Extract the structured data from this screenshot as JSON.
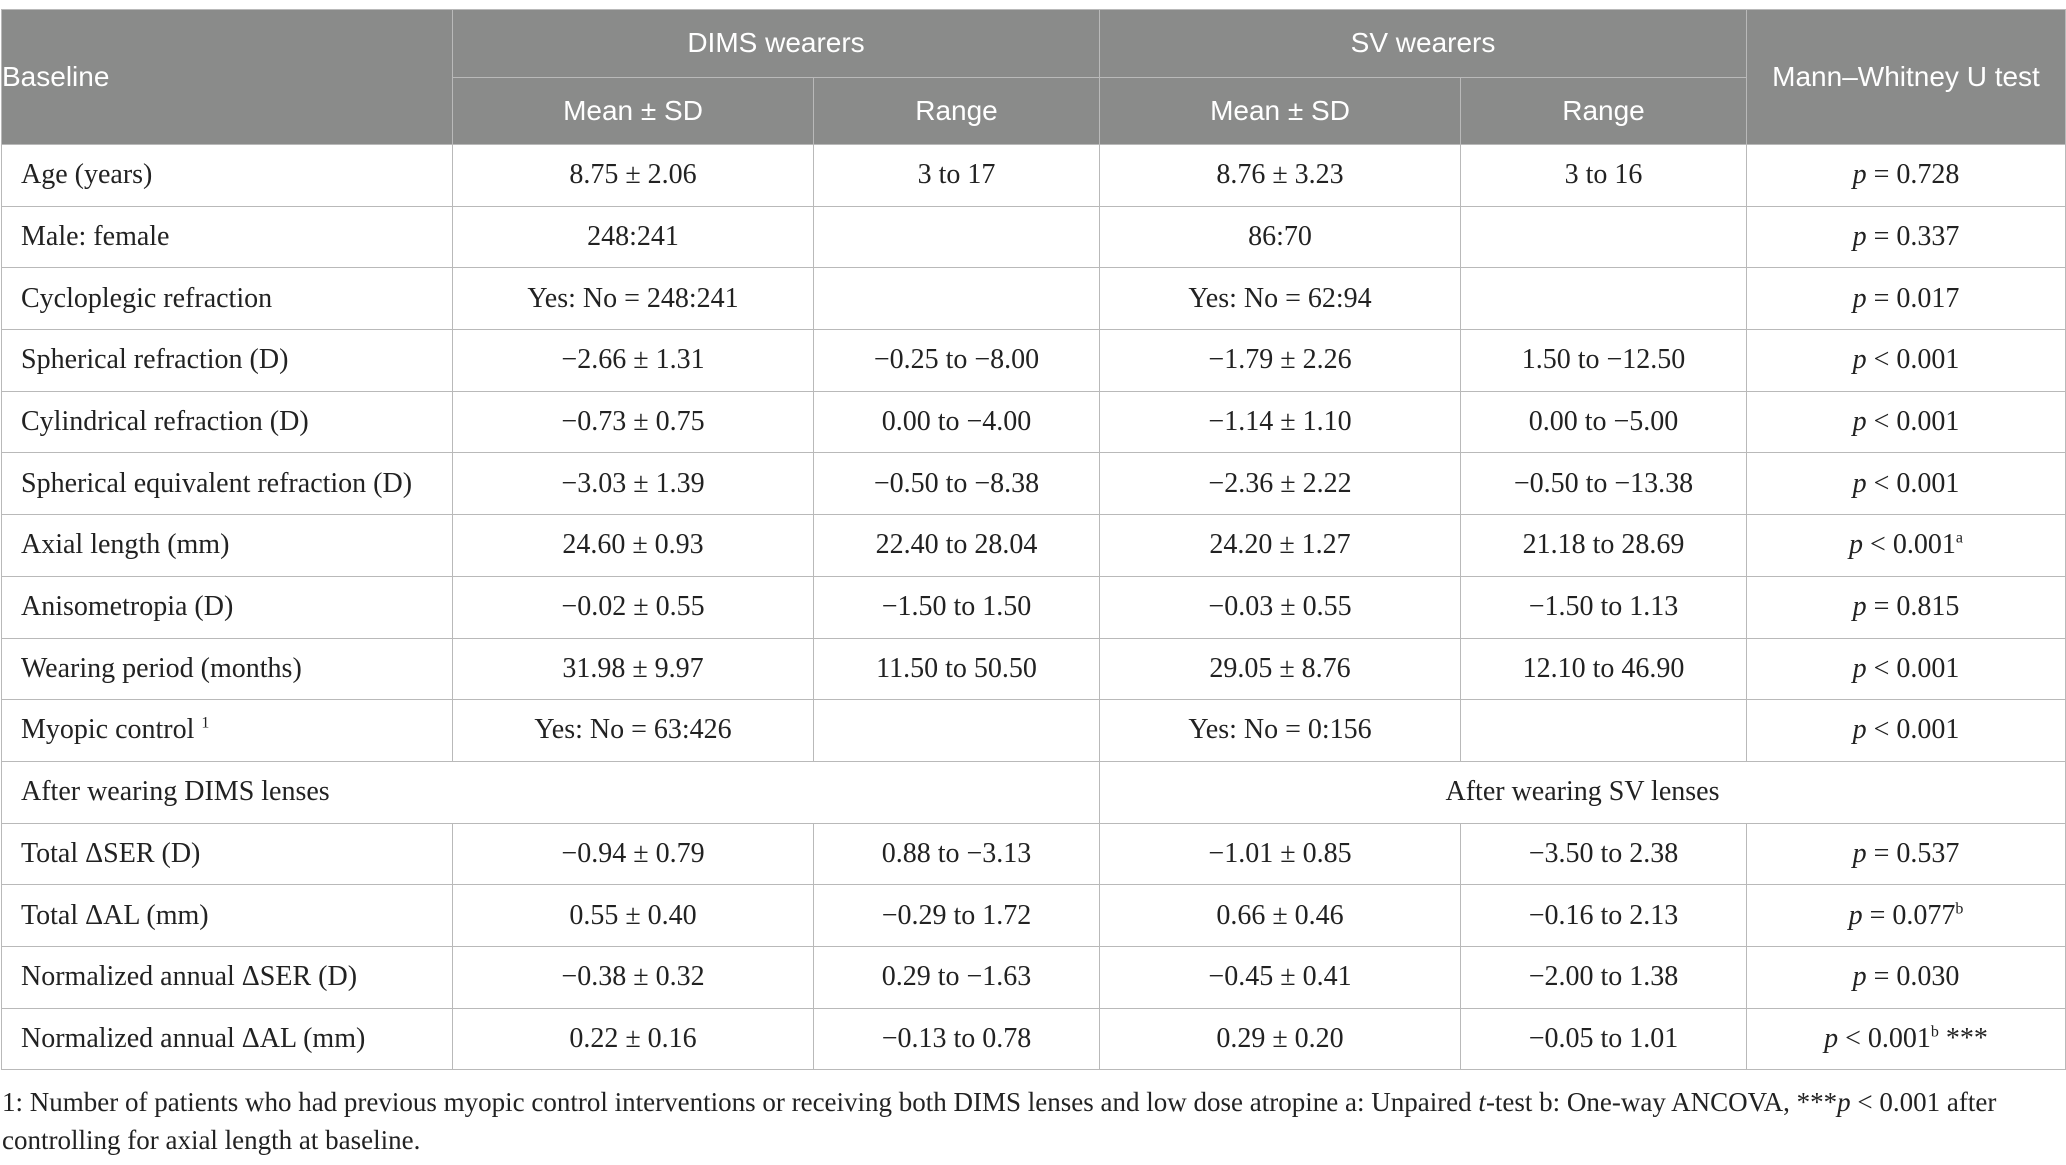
{
  "header": {
    "baseline": "Baseline",
    "dims_group": "DIMS wearers",
    "sv_group": "SV wearers",
    "test": "Mann–Whitney U test",
    "mean_sd": "Mean ± SD",
    "range": "Range"
  },
  "rows": [
    {
      "label": "Age (years)",
      "dims_mean": "8.75 ± 2.06",
      "dims_range": "3 to 17",
      "sv_mean": "8.76 ± 3.23",
      "sv_range": "3 to 16",
      "p_op": " = 0.728",
      "p_sup": ""
    },
    {
      "label": "Male: female",
      "dims_mean": "248:241",
      "dims_range": "",
      "sv_mean": "86:70",
      "sv_range": "",
      "p_op": " = 0.337",
      "p_sup": ""
    },
    {
      "label": "Cycloplegic refraction",
      "dims_mean": "Yes: No = 248:241",
      "dims_range": "",
      "sv_mean": "Yes: No = 62:94",
      "sv_range": "",
      "p_op": " = 0.017",
      "p_sup": ""
    },
    {
      "label": "Spherical refraction (D)",
      "dims_mean": "−2.66 ± 1.31",
      "dims_range": "−0.25 to −8.00",
      "sv_mean": "−1.79 ± 2.26",
      "sv_range": "1.50 to −12.50",
      "p_op": " < 0.001",
      "p_sup": ""
    },
    {
      "label": "Cylindrical refraction (D)",
      "dims_mean": "−0.73 ± 0.75",
      "dims_range": "0.00 to −4.00",
      "sv_mean": "−1.14 ± 1.10",
      "sv_range": "0.00 to −5.00",
      "p_op": " < 0.001",
      "p_sup": ""
    },
    {
      "label": "Spherical equivalent refraction (D)",
      "dims_mean": "−3.03 ± 1.39",
      "dims_range": "−0.50 to −8.38",
      "sv_mean": "−2.36 ± 2.22",
      "sv_range": "−0.50 to −13.38",
      "p_op": " < 0.001",
      "p_sup": ""
    },
    {
      "label": "Axial length (mm)",
      "dims_mean": "24.60 ± 0.93",
      "dims_range": "22.40 to 28.04",
      "sv_mean": "24.20 ± 1.27",
      "sv_range": "21.18 to 28.69",
      "p_op": " < 0.001",
      "p_sup": "a"
    },
    {
      "label": "Anisometropia (D)",
      "dims_mean": "−0.02 ± 0.55",
      "dims_range": "−1.50 to 1.50",
      "sv_mean": "−0.03 ± 0.55",
      "sv_range": "−1.50 to 1.13",
      "p_op": " = 0.815",
      "p_sup": ""
    },
    {
      "label": "Wearing period (months)",
      "dims_mean": "31.98 ± 9.97",
      "dims_range": "11.50 to 50.50",
      "sv_mean": "29.05 ± 8.76",
      "sv_range": "12.10 to 46.90",
      "p_op": " < 0.001",
      "p_sup": ""
    },
    {
      "label": "Myopic control",
      "label_sup": "1",
      "dims_mean": "Yes: No = 63:426",
      "dims_range": "",
      "sv_mean": "Yes: No = 0:156",
      "sv_range": "",
      "p_op": " < 0.001",
      "p_sup": ""
    }
  ],
  "section": {
    "dims": "After wearing DIMS lenses",
    "sv": "After wearing SV lenses"
  },
  "after_rows": [
    {
      "label": "Total ΔSER (D)",
      "dims_mean": "−0.94 ± 0.79",
      "dims_range": "0.88 to −3.13",
      "sv_mean": "−1.01 ± 0.85",
      "sv_range": "−3.50 to 2.38",
      "p_op": " = 0.537",
      "p_sup": "",
      "p_tail": ""
    },
    {
      "label": "Total ΔAL (mm)",
      "dims_mean": "0.55 ± 0.40",
      "dims_range": "−0.29 to 1.72",
      "sv_mean": "0.66 ± 0.46",
      "sv_range": "−0.16 to 2.13",
      "p_op": " = 0.077",
      "p_sup": "b",
      "p_tail": ""
    },
    {
      "label": "Normalized annual ΔSER (D)",
      "dims_mean": "−0.38 ± 0.32",
      "dims_range": "0.29 to −1.63",
      "sv_mean": "−0.45 ± 0.41",
      "sv_range": "−2.00 to 1.38",
      "p_op": " = 0.030",
      "p_sup": "",
      "p_tail": ""
    },
    {
      "label": "Normalized annual ΔAL (mm)",
      "dims_mean": "0.22 ± 0.16",
      "dims_range": "−0.13 to 0.78",
      "sv_mean": "0.29 ± 0.20",
      "sv_range": "−0.05 to 1.01",
      "p_op": " < 0.001",
      "p_sup": "b",
      "p_tail": " ***"
    }
  ],
  "p_symbol": "p",
  "footnote": {
    "part1": "1: Number of patients who had previous myopic control interventions or receiving both DIMS lenses and low dose atropine a: Unpaired ",
    "t_symbol": "t",
    "part2": "-test b: One-way ANCOVA, ***",
    "p_symbol": "p",
    "part3": " < 0.001 after controlling for axial length at baseline."
  }
}
